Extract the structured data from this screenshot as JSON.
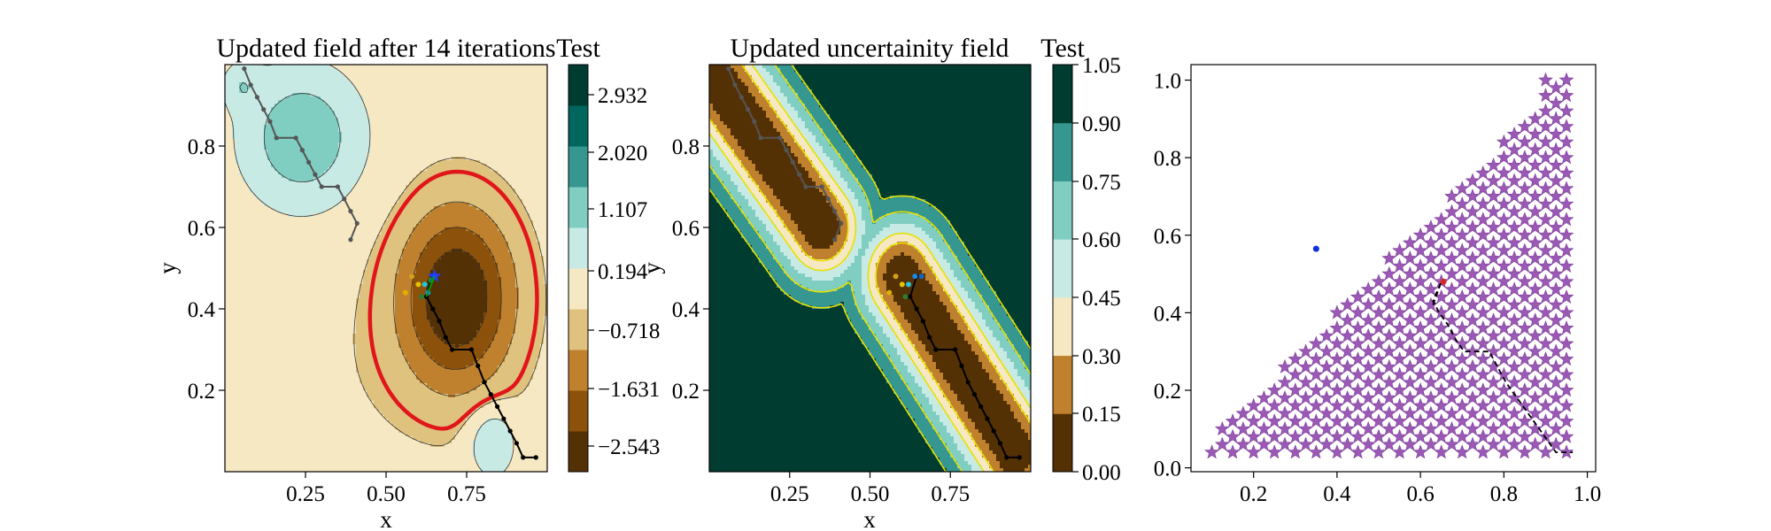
{
  "chart_data": [
    {
      "type": "contour",
      "title": "Updated field after 14 iterations",
      "xlabel": "x",
      "ylabel": "y",
      "xlim": [
        0.0,
        1.0
      ],
      "ylim": [
        0.0,
        1.0
      ],
      "x_ticks": [
        "0.25",
        "0.50",
        "0.75"
      ],
      "y_ticks": [
        "0.2",
        "0.4",
        "0.6",
        "0.8"
      ],
      "colorbar": {
        "label": "Test",
        "levels": [
          -3.45,
          -2.543,
          -1.631,
          -0.718,
          0.194,
          1.107,
          2.02,
          2.932,
          3.8
        ],
        "tick_labels": [
          "2.932",
          "2.020",
          "1.107",
          "0.194",
          "−0.718",
          "−1.631",
          "−2.543"
        ],
        "colors": [
          "#543005",
          "#8c510a",
          "#bf812d",
          "#dfc27d",
          "#f6e8c3",
          "#c7eae5",
          "#80cdc1",
          "#35978f",
          "#01665e",
          "#003c30"
        ]
      },
      "zero_contour_color": "#e0161b",
      "path_black": [
        [
          0.645,
          0.48
        ],
        [
          0.625,
          0.43
        ],
        [
          0.645,
          0.4
        ],
        [
          0.665,
          0.37
        ],
        [
          0.685,
          0.33
        ],
        [
          0.705,
          0.3
        ],
        [
          0.765,
          0.3
        ],
        [
          0.785,
          0.26
        ],
        [
          0.805,
          0.22
        ],
        [
          0.825,
          0.19
        ],
        [
          0.845,
          0.16
        ],
        [
          0.865,
          0.13
        ],
        [
          0.885,
          0.1
        ],
        [
          0.905,
          0.07
        ],
        [
          0.925,
          0.035
        ],
        [
          0.965,
          0.035
        ]
      ],
      "path_gray": [
        [
          0.06,
          0.99
        ],
        [
          0.08,
          0.95
        ],
        [
          0.1,
          0.92
        ],
        [
          0.12,
          0.89
        ],
        [
          0.14,
          0.86
        ],
        [
          0.16,
          0.82
        ],
        [
          0.22,
          0.82
        ],
        [
          0.24,
          0.79
        ],
        [
          0.26,
          0.76
        ],
        [
          0.28,
          0.73
        ],
        [
          0.3,
          0.7
        ],
        [
          0.35,
          0.7
        ],
        [
          0.37,
          0.67
        ],
        [
          0.39,
          0.64
        ],
        [
          0.41,
          0.61
        ],
        [
          0.39,
          0.57
        ]
      ],
      "best_point": [
        0.65,
        0.48
      ],
      "samples": [
        {
          "x": 0.58,
          "y": 0.48,
          "color": "#d4a017"
        },
        {
          "x": 0.6,
          "y": 0.46,
          "color": "#e6c200"
        },
        {
          "x": 0.56,
          "y": 0.44,
          "color": "#e0b000"
        },
        {
          "x": 0.62,
          "y": 0.46,
          "color": "#26c6da"
        },
        {
          "x": 0.63,
          "y": 0.44,
          "color": "#1e88e5"
        },
        {
          "x": 0.61,
          "y": 0.43,
          "color": "#2e7d32"
        },
        {
          "x": 0.64,
          "y": 0.47,
          "color": "#00aa00"
        }
      ]
    },
    {
      "type": "contour",
      "title": "Updated uncertainity field",
      "xlabel": "x",
      "ylabel": "y",
      "xlim": [
        0.0,
        1.0
      ],
      "ylim": [
        0.0,
        1.0
      ],
      "x_ticks": [
        "0.25",
        "0.50",
        "0.75"
      ],
      "y_ticks": [
        "0.2",
        "0.4",
        "0.6",
        "0.8"
      ],
      "colorbar": {
        "label": "Test",
        "levels": [
          0.0,
          0.15,
          0.3,
          0.45,
          0.6,
          0.75,
          0.9,
          1.05
        ],
        "tick_labels": [
          "1.05",
          "0.90",
          "0.75",
          "0.60",
          "0.45",
          "0.30",
          "0.15",
          "0.00"
        ],
        "colors": [
          "#543005",
          "#bf812d",
          "#f6e8c3",
          "#c7eae5",
          "#80cdc1",
          "#35978f",
          "#003c30"
        ]
      },
      "contour_line_color": "#e8e000",
      "path_black": [
        [
          0.645,
          0.48
        ],
        [
          0.625,
          0.43
        ],
        [
          0.645,
          0.4
        ],
        [
          0.665,
          0.37
        ],
        [
          0.685,
          0.33
        ],
        [
          0.705,
          0.3
        ],
        [
          0.765,
          0.3
        ],
        [
          0.785,
          0.26
        ],
        [
          0.805,
          0.22
        ],
        [
          0.825,
          0.19
        ],
        [
          0.845,
          0.16
        ],
        [
          0.865,
          0.13
        ],
        [
          0.885,
          0.1
        ],
        [
          0.905,
          0.07
        ],
        [
          0.925,
          0.035
        ],
        [
          0.965,
          0.035
        ]
      ],
      "path_gray": [
        [
          0.06,
          0.99
        ],
        [
          0.08,
          0.95
        ],
        [
          0.1,
          0.92
        ],
        [
          0.12,
          0.89
        ],
        [
          0.14,
          0.86
        ],
        [
          0.16,
          0.82
        ],
        [
          0.22,
          0.82
        ],
        [
          0.24,
          0.79
        ],
        [
          0.26,
          0.76
        ],
        [
          0.28,
          0.73
        ],
        [
          0.3,
          0.7
        ],
        [
          0.35,
          0.7
        ],
        [
          0.37,
          0.67
        ],
        [
          0.39,
          0.64
        ],
        [
          0.41,
          0.61
        ],
        [
          0.39,
          0.57
        ]
      ],
      "samples": [
        {
          "x": 0.58,
          "y": 0.48,
          "color": "#d4a017"
        },
        {
          "x": 0.6,
          "y": 0.46,
          "color": "#e6c200"
        },
        {
          "x": 0.56,
          "y": 0.44,
          "color": "#e0b000"
        },
        {
          "x": 0.62,
          "y": 0.46,
          "color": "#26c6da"
        },
        {
          "x": 0.64,
          "y": 0.48,
          "color": "#1e88e5"
        },
        {
          "x": 0.66,
          "y": 0.48,
          "color": "#1565c0"
        },
        {
          "x": 0.61,
          "y": 0.43,
          "color": "#2e7d32"
        }
      ]
    },
    {
      "type": "scatter",
      "xlim": [
        0.05,
        1.02
      ],
      "ylim": [
        -0.01,
        1.04
      ],
      "x_ticks": [
        0.2,
        0.4,
        0.6,
        0.8,
        1.0
      ],
      "y_ticks": [
        0.0,
        0.2,
        0.4,
        0.6,
        0.8,
        1.0
      ],
      "x_tick_labels": [
        "0.2",
        "0.4",
        "0.6",
        "0.8",
        "1.0"
      ],
      "y_tick_labels": [
        "0.0",
        "0.2",
        "0.4",
        "0.6",
        "0.8",
        "1.0"
      ],
      "star_color": "#9b59b6",
      "grid_step": 0.05,
      "grid_x_start": 0.1,
      "grid_x_end": 0.95,
      "grid_y_start": 0.04,
      "grid_y_end": 1.0,
      "path": [
        [
          0.63,
          0.42
        ],
        [
          0.65,
          0.48
        ],
        [
          0.63,
          0.43
        ],
        [
          0.645,
          0.4
        ],
        [
          0.665,
          0.37
        ],
        [
          0.685,
          0.33
        ],
        [
          0.705,
          0.3
        ],
        [
          0.765,
          0.3
        ],
        [
          0.785,
          0.26
        ],
        [
          0.805,
          0.22
        ],
        [
          0.825,
          0.19
        ],
        [
          0.845,
          0.16
        ],
        [
          0.865,
          0.13
        ],
        [
          0.885,
          0.1
        ],
        [
          0.905,
          0.07
        ],
        [
          0.925,
          0.04
        ],
        [
          0.965,
          0.04
        ]
      ],
      "blue_point": [
        0.35,
        0.565
      ],
      "red_point": [
        0.655,
        0.48
      ]
    }
  ]
}
